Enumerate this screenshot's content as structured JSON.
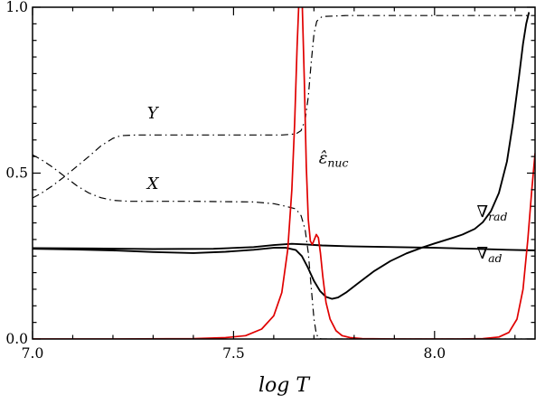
{
  "chart_data": {
    "type": "line",
    "title": "",
    "xlabel": "log T",
    "ylabel": "",
    "xlim": [
      7.0,
      8.25
    ],
    "ylim": [
      0.0,
      1.0
    ],
    "grid": false,
    "legend": "none (inline annotations)",
    "axis_color": "#000000",
    "xticks": {
      "major": [
        {
          "v": 7.0,
          "label": "7.0"
        },
        {
          "v": 7.5,
          "label": "7.5"
        },
        {
          "v": 8.0,
          "label": "8.0"
        }
      ],
      "minor_step": 0.1
    },
    "yticks": {
      "major": [
        {
          "v": 0.0,
          "label": "0.0"
        },
        {
          "v": 0.5,
          "label": "0.5"
        },
        {
          "v": 1.0,
          "label": "1.0"
        }
      ],
      "minor_step": 0.05
    },
    "series": [
      {
        "name": "helium-abundance-Y",
        "color": "#000000",
        "style": "dashdot",
        "width": 1.2,
        "points": [
          [
            7.0,
            0.425
          ],
          [
            7.02,
            0.438
          ],
          [
            7.05,
            0.462
          ],
          [
            7.08,
            0.49
          ],
          [
            7.11,
            0.52
          ],
          [
            7.14,
            0.55
          ],
          [
            7.17,
            0.582
          ],
          [
            7.2,
            0.605
          ],
          [
            7.22,
            0.613
          ],
          [
            7.26,
            0.615
          ],
          [
            7.4,
            0.615
          ],
          [
            7.55,
            0.615
          ],
          [
            7.62,
            0.615
          ],
          [
            7.655,
            0.618
          ],
          [
            7.668,
            0.628
          ],
          [
            7.678,
            0.66
          ],
          [
            7.686,
            0.73
          ],
          [
            7.693,
            0.83
          ],
          [
            7.7,
            0.92
          ],
          [
            7.707,
            0.958
          ],
          [
            7.72,
            0.972
          ],
          [
            7.78,
            0.975
          ],
          [
            7.9,
            0.975
          ],
          [
            8.1,
            0.975
          ],
          [
            8.25,
            0.975
          ]
        ]
      },
      {
        "name": "hydrogen-abundance-X",
        "color": "#000000",
        "style": "dashdot",
        "width": 1.2,
        "points": [
          [
            7.0,
            0.555
          ],
          [
            7.02,
            0.542
          ],
          [
            7.05,
            0.518
          ],
          [
            7.08,
            0.49
          ],
          [
            7.11,
            0.462
          ],
          [
            7.14,
            0.44
          ],
          [
            7.17,
            0.426
          ],
          [
            7.2,
            0.418
          ],
          [
            7.24,
            0.415
          ],
          [
            7.4,
            0.415
          ],
          [
            7.55,
            0.413
          ],
          [
            7.6,
            0.408
          ],
          [
            7.63,
            0.4
          ],
          [
            7.655,
            0.392
          ],
          [
            7.668,
            0.372
          ],
          [
            7.678,
            0.33
          ],
          [
            7.686,
            0.26
          ],
          [
            7.693,
            0.16
          ],
          [
            7.7,
            0.06
          ],
          [
            7.706,
            0.015
          ],
          [
            7.712,
            0.002
          ],
          [
            7.72,
            0.0
          ],
          [
            7.9,
            0.0
          ],
          [
            8.25,
            0.0
          ]
        ]
      },
      {
        "name": "nabla-rad",
        "color": "#000000",
        "style": "solid",
        "width": 1.9,
        "points": [
          [
            7.0,
            0.272
          ],
          [
            7.1,
            0.27
          ],
          [
            7.2,
            0.267
          ],
          [
            7.3,
            0.262
          ],
          [
            7.4,
            0.259
          ],
          [
            7.48,
            0.263
          ],
          [
            7.55,
            0.269
          ],
          [
            7.6,
            0.275
          ],
          [
            7.63,
            0.275
          ],
          [
            7.655,
            0.268
          ],
          [
            7.67,
            0.25
          ],
          [
            7.685,
            0.215
          ],
          [
            7.7,
            0.175
          ],
          [
            7.715,
            0.145
          ],
          [
            7.73,
            0.127
          ],
          [
            7.745,
            0.121
          ],
          [
            7.76,
            0.125
          ],
          [
            7.78,
            0.14
          ],
          [
            7.81,
            0.168
          ],
          [
            7.85,
            0.205
          ],
          [
            7.89,
            0.235
          ],
          [
            7.93,
            0.258
          ],
          [
            7.97,
            0.276
          ],
          [
            8.0,
            0.288
          ],
          [
            8.04,
            0.303
          ],
          [
            8.07,
            0.315
          ],
          [
            8.1,
            0.332
          ],
          [
            8.12,
            0.352
          ],
          [
            8.14,
            0.385
          ],
          [
            8.16,
            0.44
          ],
          [
            8.18,
            0.535
          ],
          [
            8.195,
            0.65
          ],
          [
            8.21,
            0.79
          ],
          [
            8.22,
            0.89
          ],
          [
            8.228,
            0.95
          ],
          [
            8.235,
            0.985
          ]
        ]
      },
      {
        "name": "nabla-ad",
        "color": "#000000",
        "style": "solid",
        "width": 1.9,
        "points": [
          [
            7.0,
            0.274
          ],
          [
            7.15,
            0.273
          ],
          [
            7.3,
            0.271
          ],
          [
            7.45,
            0.272
          ],
          [
            7.55,
            0.277
          ],
          [
            7.6,
            0.283
          ],
          [
            7.645,
            0.287
          ],
          [
            7.68,
            0.285
          ],
          [
            7.72,
            0.282
          ],
          [
            7.8,
            0.279
          ],
          [
            7.9,
            0.277
          ],
          [
            8.0,
            0.275
          ],
          [
            8.1,
            0.272
          ],
          [
            8.18,
            0.269
          ],
          [
            8.25,
            0.267
          ]
        ]
      },
      {
        "name": "epsilon-nuc-normalized",
        "color": "#e00000",
        "style": "solid",
        "width": 1.7,
        "points": [
          [
            7.0,
            0.0
          ],
          [
            7.2,
            0.0
          ],
          [
            7.4,
            0.001
          ],
          [
            7.48,
            0.004
          ],
          [
            7.53,
            0.01
          ],
          [
            7.57,
            0.03
          ],
          [
            7.6,
            0.07
          ],
          [
            7.62,
            0.14
          ],
          [
            7.635,
            0.27
          ],
          [
            7.645,
            0.45
          ],
          [
            7.652,
            0.65
          ],
          [
            7.658,
            0.88
          ],
          [
            7.663,
            1.03
          ],
          [
            7.667,
            1.06
          ],
          [
            7.671,
            1.0
          ],
          [
            7.676,
            0.78
          ],
          [
            7.681,
            0.52
          ],
          [
            7.686,
            0.36
          ],
          [
            7.691,
            0.295
          ],
          [
            7.696,
            0.285
          ],
          [
            7.701,
            0.3
          ],
          [
            7.706,
            0.315
          ],
          [
            7.711,
            0.305
          ],
          [
            7.716,
            0.26
          ],
          [
            7.722,
            0.19
          ],
          [
            7.73,
            0.11
          ],
          [
            7.74,
            0.06
          ],
          [
            7.755,
            0.025
          ],
          [
            7.77,
            0.01
          ],
          [
            7.79,
            0.004
          ],
          [
            7.82,
            0.001
          ],
          [
            7.9,
            0.0
          ],
          [
            8.05,
            0.0
          ],
          [
            8.12,
            0.001
          ],
          [
            8.16,
            0.006
          ],
          [
            8.185,
            0.02
          ],
          [
            8.205,
            0.06
          ],
          [
            8.22,
            0.15
          ],
          [
            8.232,
            0.3
          ],
          [
            8.242,
            0.45
          ],
          [
            8.25,
            0.56
          ]
        ]
      }
    ],
    "annotations": [
      {
        "id": "label-Y",
        "main": "Y",
        "sub": "",
        "x": 7.285,
        "y": 0.665,
        "color": "#000000",
        "main_italic": true
      },
      {
        "id": "label-X",
        "main": "X",
        "sub": "",
        "x": 7.285,
        "y": 0.452,
        "color": "#000000",
        "main_italic": true
      },
      {
        "id": "label-eps-nuc",
        "main": "ε̂",
        "sub": "nuc",
        "x": 7.712,
        "y": 0.53,
        "color": "#000000",
        "main_italic": true
      },
      {
        "id": "label-nabla-rad",
        "main": "∇",
        "sub": "rad",
        "x": 8.105,
        "y": 0.368,
        "color": "#000000",
        "main_italic": false
      },
      {
        "id": "label-nabla-ad",
        "main": "∇",
        "sub": "ad",
        "x": 8.105,
        "y": 0.243,
        "color": "#000000",
        "main_italic": false
      }
    ]
  }
}
